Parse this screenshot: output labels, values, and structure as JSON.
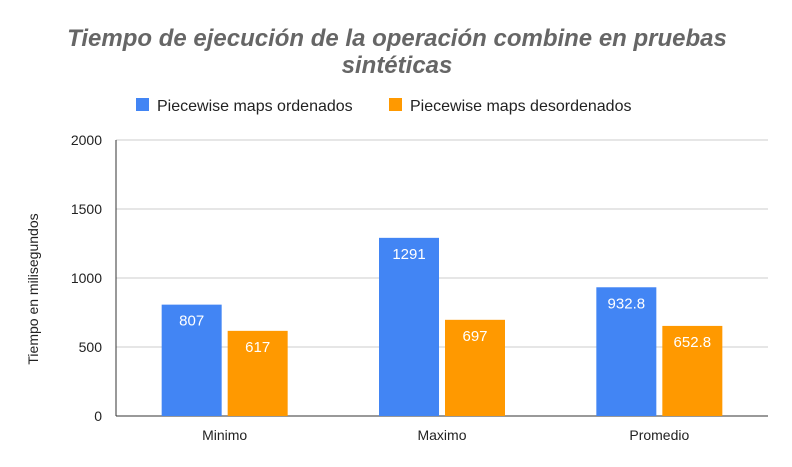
{
  "chart_data": {
    "type": "bar",
    "title_line1": "Tiempo de ejecución de la operación combine en pruebas",
    "title_line2": "sintéticas",
    "categories": [
      "Minimo",
      "Maximo",
      "Promedio"
    ],
    "series": [
      {
        "name": "Piecewise maps ordenados",
        "color": "#4285F4",
        "values": [
          807,
          1291,
          932.8
        ],
        "labels": [
          "807",
          "1291",
          "932.8"
        ]
      },
      {
        "name": "Piecewise maps desordenados",
        "color": "#FF9900",
        "values": [
          617,
          697,
          652.8
        ],
        "labels": [
          "617",
          "697",
          "652.8"
        ]
      }
    ],
    "xlabel": "",
    "ylabel": "Tiempo en milisegundos",
    "ylim": [
      0,
      2000
    ],
    "yticks": [
      "0",
      "500",
      "1000",
      "1500",
      "2000"
    ],
    "grid": true,
    "legend_position": "top"
  }
}
